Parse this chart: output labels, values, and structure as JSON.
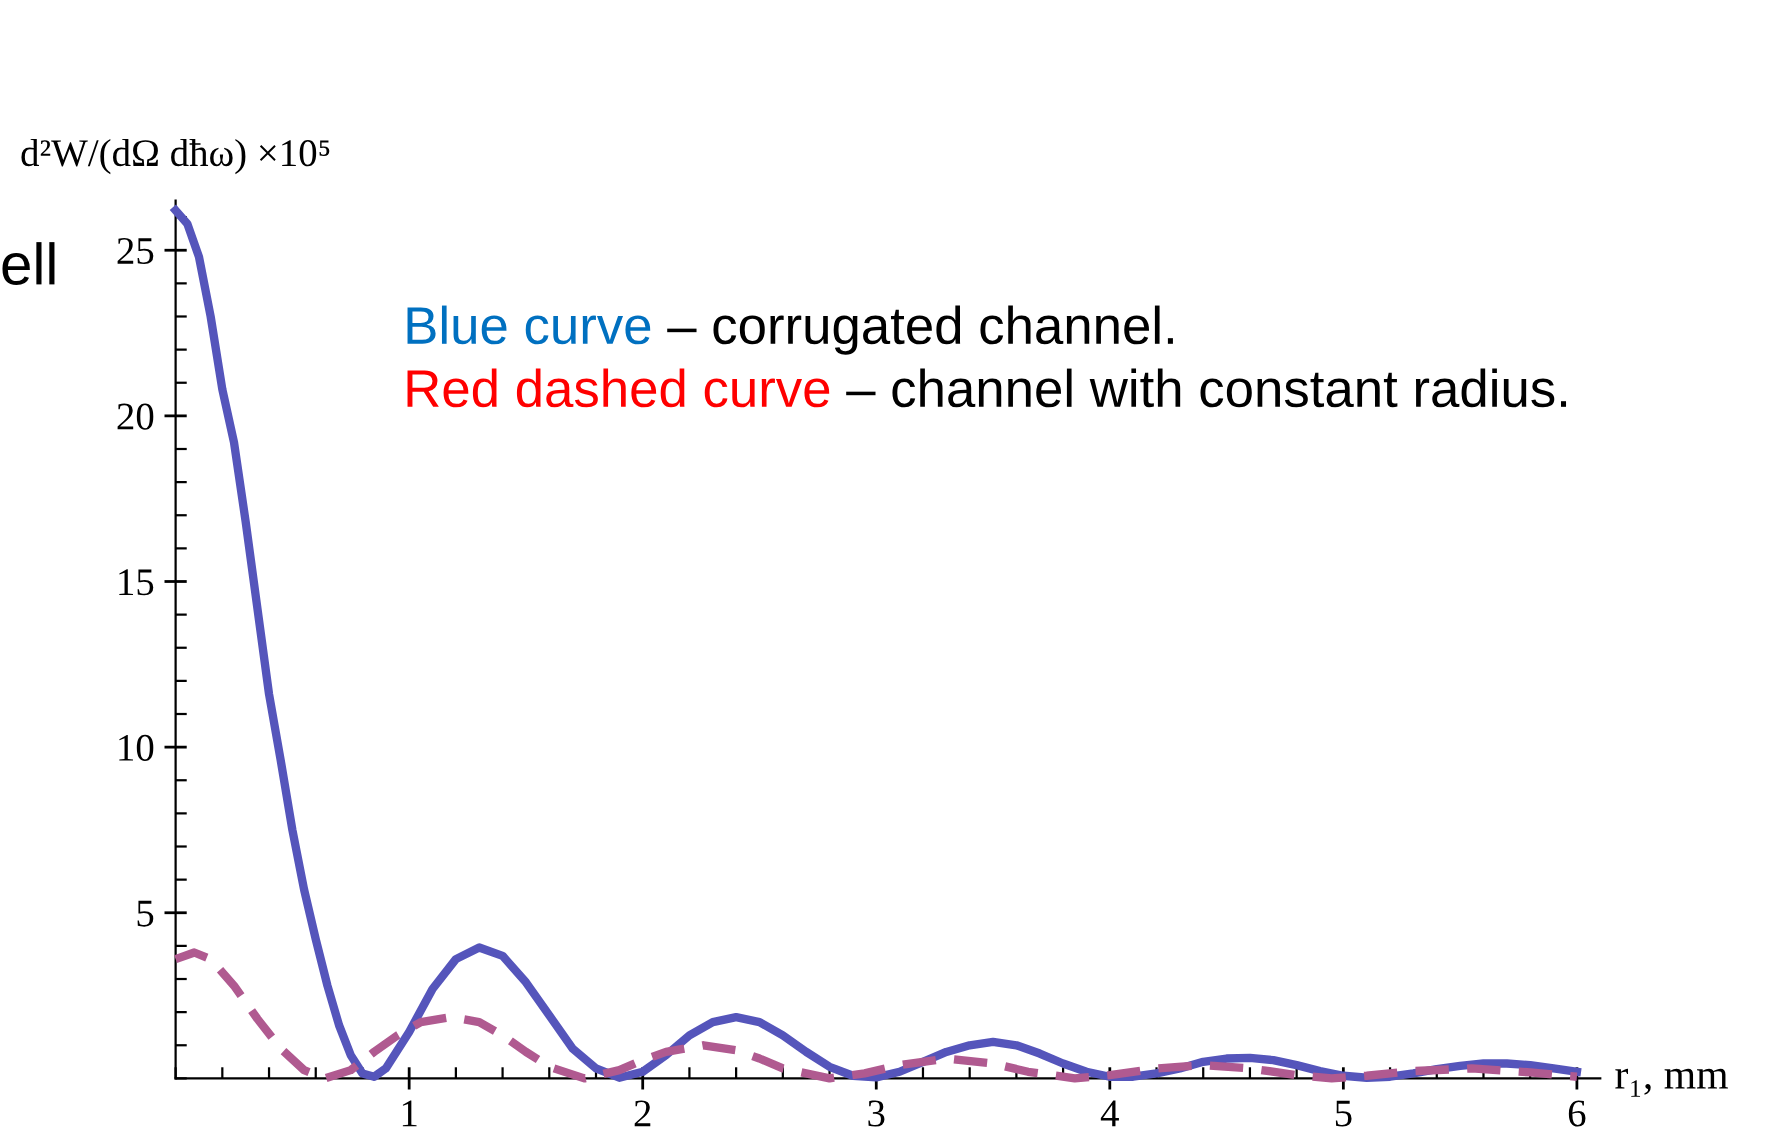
{
  "chart_data": {
    "type": "line",
    "ylabel": "d²W/(dΩ dħω) ×10⁵",
    "xlabel": "r₁, mm",
    "xlim": [
      0,
      6.1
    ],
    "ylim": [
      0,
      26.5
    ],
    "xticks": [
      1,
      2,
      3,
      4,
      5,
      6
    ],
    "yticks": [
      5,
      10,
      15,
      20,
      25
    ],
    "grid": false,
    "legend": false,
    "annotations": [
      "ell",
      "Blue curve",
      " – corrugated channel.",
      "Red dashed curve",
      " – channel with constant radius."
    ],
    "series": [
      {
        "color": "#5555bb",
        "line_style": "solid",
        "x": [
          0,
          0.05,
          0.1,
          0.15,
          0.2,
          0.25,
          0.3,
          0.35,
          0.4,
          0.45,
          0.5,
          0.55,
          0.6,
          0.65,
          0.7,
          0.75,
          0.8,
          0.85,
          0.9,
          1.0,
          1.1,
          1.2,
          1.3,
          1.4,
          1.5,
          1.6,
          1.7,
          1.8,
          1.9,
          2.0,
          2.1,
          2.2,
          2.3,
          2.4,
          2.5,
          2.6,
          2.7,
          2.8,
          2.9,
          3.0,
          3.1,
          3.2,
          3.3,
          3.4,
          3.5,
          3.6,
          3.7,
          3.8,
          3.9,
          4.0,
          4.1,
          4.2,
          4.3,
          4.4,
          4.5,
          4.6,
          4.7,
          4.8,
          4.9,
          5.0,
          5.1,
          5.2,
          5.3,
          5.4,
          5.5,
          5.6,
          5.7,
          5.8,
          5.9,
          6.0
        ],
        "values": [
          26.2,
          25.8,
          24.8,
          23,
          20.8,
          19.2,
          16.8,
          14.2,
          11.6,
          9.6,
          7.5,
          5.7,
          4.2,
          2.8,
          1.6,
          0.7,
          0.15,
          0.05,
          0.3,
          1.4,
          2.7,
          3.6,
          3.95,
          3.7,
          2.9,
          1.9,
          0.9,
          0.3,
          0.02,
          0.2,
          0.7,
          1.3,
          1.7,
          1.85,
          1.7,
          1.3,
          0.8,
          0.35,
          0.08,
          0.03,
          0.2,
          0.5,
          0.8,
          1.0,
          1.1,
          1.0,
          0.75,
          0.45,
          0.2,
          0.05,
          0.05,
          0.15,
          0.3,
          0.5,
          0.6,
          0.62,
          0.55,
          0.4,
          0.22,
          0.08,
          0.02,
          0.05,
          0.15,
          0.28,
          0.38,
          0.45,
          0.45,
          0.4,
          0.3,
          0.2
        ]
      },
      {
        "color": "#b05a90",
        "line_style": "dashed",
        "x": [
          0,
          0.08,
          0.15,
          0.25,
          0.35,
          0.45,
          0.55,
          0.64,
          0.75,
          0.85,
          0.95,
          1.05,
          1.18,
          1.3,
          1.4,
          1.5,
          1.6,
          1.75,
          1.9,
          2.0,
          2.1,
          2.26,
          2.4,
          2.5,
          2.6,
          2.8,
          2.95,
          3.1,
          3.3,
          3.5,
          3.65,
          3.85,
          4.0,
          4.2,
          4.4,
          4.6,
          4.8,
          4.95,
          5.1,
          5.3,
          5.55,
          5.8,
          6.0
        ],
        "values": [
          3.6,
          3.8,
          3.6,
          2.8,
          1.8,
          0.9,
          0.25,
          0.0,
          0.25,
          0.8,
          1.3,
          1.7,
          1.85,
          1.7,
          1.3,
          0.8,
          0.35,
          0.0,
          0.25,
          0.55,
          0.8,
          1.0,
          0.85,
          0.6,
          0.3,
          0.0,
          0.15,
          0.4,
          0.6,
          0.45,
          0.2,
          0.0,
          0.1,
          0.3,
          0.4,
          0.3,
          0.1,
          0.0,
          0.08,
          0.22,
          0.3,
          0.18,
          0.05
        ]
      }
    ]
  }
}
